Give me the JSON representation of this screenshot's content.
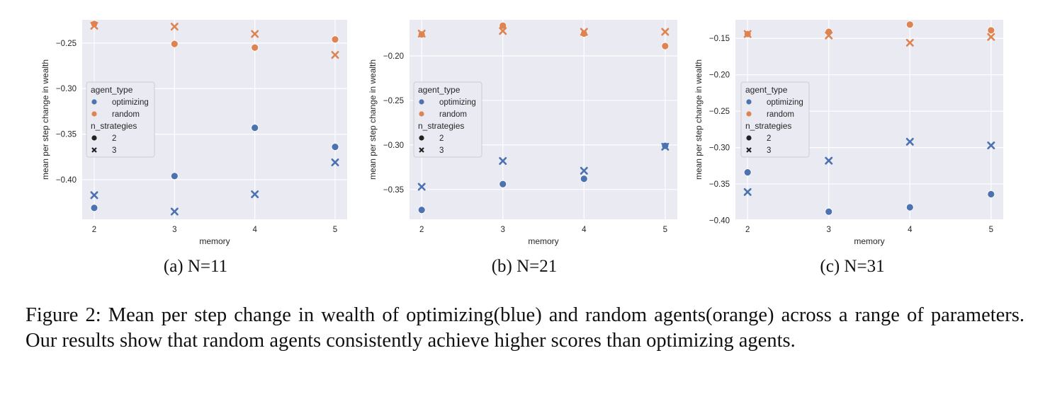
{
  "colors": {
    "optimizing": "#4c72b0",
    "random": "#dd8452",
    "plot_bg": "#eaeaf2",
    "grid": "#ffffff",
    "legend_bg": "#eaeaf2"
  },
  "legend": {
    "title_hue": "agent_type",
    "hue_items": [
      "optimizing",
      "random"
    ],
    "title_style": "n_strategies",
    "style_items": [
      "2",
      "3"
    ],
    "placement": "center-left"
  },
  "subcaptions": [
    "(a) N=11",
    "(b) N=21",
    "(c) N=31"
  ],
  "figure_caption": "Figure 2: Mean per step change in wealth of optimizing(blue) and random agents(orange) across a range of parameters. Our results show that random agents consistently achieve higher scores than optimizing agents.",
  "chart_data": [
    {
      "type": "scatter",
      "xlabel": "memory",
      "ylabel": "mean per step change in wealth",
      "x_ticks": [
        2,
        3,
        4,
        5
      ],
      "y_ticks": [
        -0.4,
        -0.35,
        -0.3,
        -0.25
      ],
      "xlim": [
        1.85,
        5.15
      ],
      "ylim": [
        -0.4435,
        -0.2245
      ],
      "grid": true,
      "series": [
        {
          "agent_type": "optimizing",
          "n_strategies": "2",
          "x": [
            2,
            3,
            4,
            5
          ],
          "y": [
            -0.431,
            -0.396,
            -0.343,
            -0.364
          ]
        },
        {
          "agent_type": "optimizing",
          "n_strategies": "3",
          "x": [
            2,
            3,
            4,
            5
          ],
          "y": [
            -0.417,
            -0.435,
            -0.416,
            -0.381
          ]
        },
        {
          "agent_type": "random",
          "n_strategies": "2",
          "x": [
            2,
            3,
            4,
            5
          ],
          "y": [
            -0.229,
            -0.251,
            -0.255,
            -0.246
          ]
        },
        {
          "agent_type": "random",
          "n_strategies": "3",
          "x": [
            2,
            3,
            4,
            5
          ],
          "y": [
            -0.231,
            -0.232,
            -0.24,
            -0.263
          ]
        }
      ]
    },
    {
      "type": "scatter",
      "xlabel": "memory",
      "ylabel": "mean per step change in wealth",
      "x_ticks": [
        2,
        3,
        4,
        5
      ],
      "y_ticks": [
        -0.35,
        -0.3,
        -0.25,
        -0.2
      ],
      "xlim": [
        1.85,
        5.15
      ],
      "ylim": [
        -0.3835,
        -0.1595
      ],
      "grid": true,
      "series": [
        {
          "agent_type": "optimizing",
          "n_strategies": "2",
          "x": [
            2,
            3,
            4,
            5
          ],
          "y": [
            -0.373,
            -0.344,
            -0.338,
            -0.301
          ]
        },
        {
          "agent_type": "optimizing",
          "n_strategies": "3",
          "x": [
            2,
            3,
            4,
            5
          ],
          "y": [
            -0.347,
            -0.318,
            -0.329,
            -0.302
          ]
        },
        {
          "agent_type": "random",
          "n_strategies": "2",
          "x": [
            2,
            3,
            4,
            5
          ],
          "y": [
            -0.176,
            -0.166,
            -0.175,
            -0.189
          ]
        },
        {
          "agent_type": "random",
          "n_strategies": "3",
          "x": [
            2,
            3,
            4,
            5
          ],
          "y": [
            -0.175,
            -0.172,
            -0.173,
            -0.173
          ]
        }
      ]
    },
    {
      "type": "scatter",
      "xlabel": "memory",
      "ylabel": "mean per step change in wealth",
      "x_ticks": [
        2,
        3,
        4,
        5
      ],
      "y_ticks": [
        -0.4,
        -0.35,
        -0.3,
        -0.25,
        -0.2,
        -0.15
      ],
      "xlim": [
        1.85,
        5.15
      ],
      "ylim": [
        -0.3985,
        -0.1245
      ],
      "grid": true,
      "series": [
        {
          "agent_type": "optimizing",
          "n_strategies": "2",
          "x": [
            2,
            3,
            4,
            5
          ],
          "y": [
            -0.334,
            -0.388,
            -0.382,
            -0.364
          ]
        },
        {
          "agent_type": "optimizing",
          "n_strategies": "3",
          "x": [
            2,
            3,
            4,
            5
          ],
          "y": [
            -0.361,
            -0.318,
            -0.292,
            -0.297
          ]
        },
        {
          "agent_type": "random",
          "n_strategies": "2",
          "x": [
            2,
            3,
            4,
            5
          ],
          "y": [
            -0.144,
            -0.141,
            -0.131,
            -0.139
          ]
        },
        {
          "agent_type": "random",
          "n_strategies": "3",
          "x": [
            2,
            3,
            4,
            5
          ],
          "y": [
            -0.144,
            -0.146,
            -0.156,
            -0.148
          ]
        }
      ]
    }
  ]
}
